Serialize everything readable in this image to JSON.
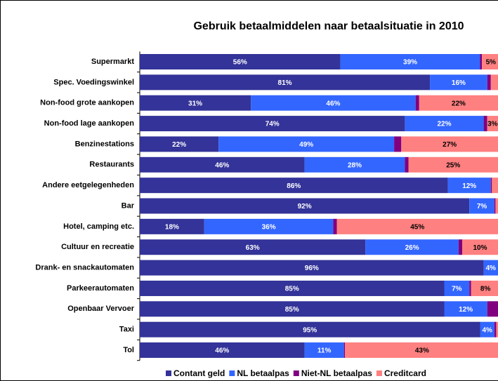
{
  "chart_data": {
    "type": "stacked-bar-horizontal",
    "title": "Gebruik betaalmiddelen naar betaalsituatie in 2010",
    "categories": [
      "Supermarkt",
      "Spec. Voedingswinkel",
      "Non-food grote aankopen",
      "Non-food lage aankopen",
      "Benzinestations",
      "Restaurants",
      "Andere eetgelegenheden",
      "Bar",
      "Hotel, camping etc.",
      "Cultuur en recreatie",
      "Drank- en snackautomaten",
      "Parkeerautomaten",
      "Openbaar Vervoer",
      "Taxi",
      "Tol"
    ],
    "xlim": [
      0,
      100
    ],
    "series": [
      {
        "name": "Contant geld",
        "color": "#333399",
        "values": [
          56,
          81,
          31,
          74,
          22,
          46,
          86,
          92,
          18,
          63,
          96,
          85,
          85,
          95,
          46
        ],
        "value_labels": [
          "56%",
          "81%",
          "31%",
          "74%",
          "22%",
          "46%",
          "86%",
          "92%",
          "18%",
          "63%",
          "96%",
          "85%",
          "85%",
          "95%",
          "46%"
        ]
      },
      {
        "name": "NL betaalpas",
        "color": "#3366ff",
        "values": [
          39,
          16,
          46,
          22,
          49,
          28,
          12,
          7,
          36,
          26,
          4,
          7,
          12,
          4,
          11
        ],
        "value_labels": [
          "39%",
          "16%",
          "46%",
          "22%",
          "49%",
          "28%",
          "12%",
          "7%",
          "36%",
          "26%",
          "4%",
          "7%",
          "12%",
          "4%",
          "11%"
        ]
      },
      {
        "name": "Niet-NL betaalpas",
        "color": "#800080",
        "values": [
          0.5,
          1,
          1,
          1,
          2,
          1,
          0.3,
          0.3,
          1,
          1,
          0,
          0.5,
          3,
          0.5,
          0.3
        ],
        "value_labels": [
          null,
          null,
          null,
          null,
          null,
          null,
          null,
          null,
          null,
          null,
          null,
          null,
          null,
          null,
          null
        ]
      },
      {
        "name": "Creditcard",
        "color": "#ff8080",
        "values": [
          5,
          2,
          22,
          3,
          27,
          25,
          1.7,
          0.7,
          45,
          10,
          0,
          8,
          0,
          0.5,
          43
        ],
        "value_labels": [
          "5%",
          null,
          "22%",
          "3%",
          "27%",
          "25%",
          null,
          null,
          "45%",
          "10%",
          null,
          "8%",
          null,
          null,
          "43%"
        ]
      }
    ]
  }
}
